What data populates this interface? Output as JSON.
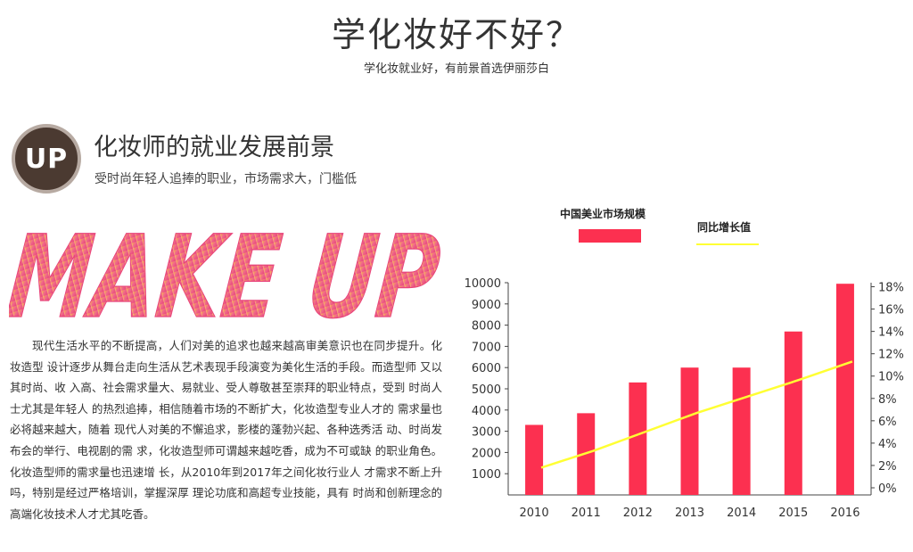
{
  "header": {
    "title": "学化妆好不好？",
    "subtitle": "学化妆就业好，有前景首选伊丽莎白"
  },
  "section": {
    "badge": "UP",
    "title": "化妆师的就业发展前景",
    "subtitle": "受时尚年轻人追捧的职业，市场需求大，门槛低",
    "art_text": "MAKE UP",
    "body": "现代生活水平的不断提高，人们对美的追求也越来越高审美意识也在同步提升。化妆造型 设计逐步从舞台走向生活从艺术表现手段演变为美化生活的手段。而造型师 又以其时尚、收 入高、社会需求量大、易就业、受人尊敬甚至崇拜的职业特点，受到 时尚人士尤其是年轻人 的热烈追捧，相信随着市场的不断扩大，化妆造型专业人才的 需求量也必将越来越大，随着 现代人对美的不懈追求，影楼的蓬勃兴起、各种选秀活 动、时尚发布会的举行、电视剧的需 求，化妆造型师可谓越来越吃香，成为不可或缺 的职业角色。化妆造型师的需求量也迅速增 长，从2010年到2017年之间化妆行业人 才需求不断上升吗，特别是经过严格培训，掌握深厚 理论功底和高超专业技能，具有 时尚和创新理念的高端化妆技术人才尤其吃香。"
  },
  "chart_data": {
    "type": "bar",
    "categories": [
      "2010",
      "2011",
      "2012",
      "2013",
      "2014",
      "2015",
      "2016"
    ],
    "series": [
      {
        "name": "中国美业市场规模",
        "kind": "bar",
        "axis": "left",
        "color": "#fc3050",
        "values": [
          3300,
          3850,
          5300,
          6000,
          6000,
          7700,
          9950
        ]
      },
      {
        "name": "同比增长值",
        "kind": "line",
        "axis": "right",
        "color": "#ffff33",
        "values": [
          1.8,
          3.3,
          5.0,
          6.7,
          8.2,
          9.7,
          11.3
        ]
      }
    ],
    "y_left": {
      "min": 0,
      "max": 10000,
      "ticks": [
        "10000",
        "9000",
        "8000",
        "7000",
        "6000",
        "5000",
        "4000",
        "3000",
        "2000",
        "1000"
      ]
    },
    "y_right": {
      "min": 0,
      "max": 19,
      "ticks": [
        "18%",
        "16%",
        "14%",
        "12%",
        "10%",
        "8%",
        "6%",
        "4%",
        "2%",
        "0%"
      ]
    }
  }
}
